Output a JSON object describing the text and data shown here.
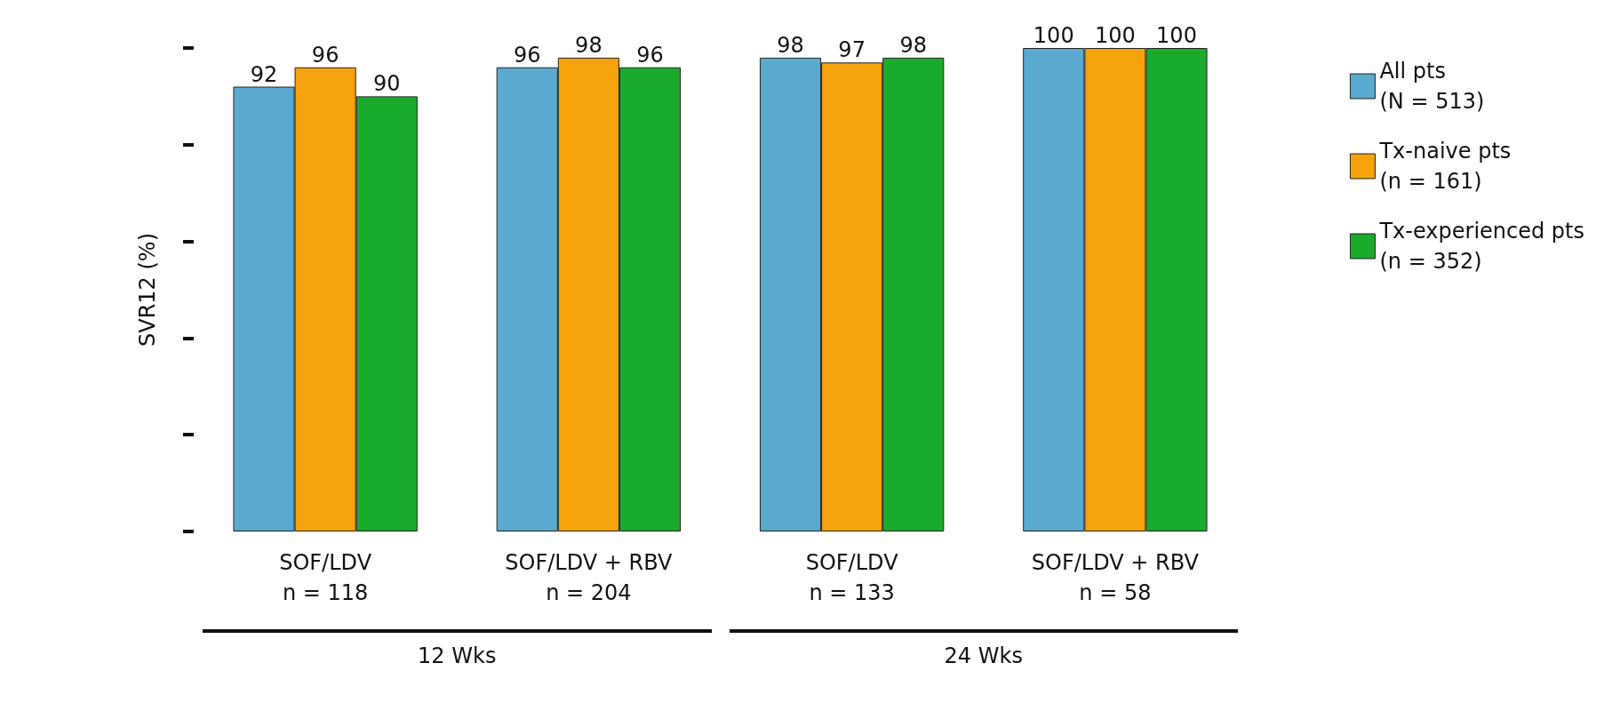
{
  "chart_data": {
    "type": "bar",
    "ylabel": "SVR12 (%)",
    "categories": [
      "SOF/LDV\nn = 118",
      "SOF/LDV + RBV\nn = 204",
      "SOF/LDV\nn = 133",
      "SOF/LDV + RBV\nn = 58"
    ],
    "series": [
      {
        "name": "All pts\n(N = 513)",
        "color": "#5aaacf",
        "values": [
          92,
          96,
          98,
          100
        ]
      },
      {
        "name": "Tx-naive pts\n(n = 161)",
        "color": "#f5a20c",
        "values": [
          96,
          98,
          97,
          100
        ]
      },
      {
        "name": "Tx-experienced pts\n(n = 352)",
        "color": "#1aab2c",
        "values": [
          90,
          96,
          98,
          100
        ]
      }
    ],
    "ylim": [
      0,
      100
    ],
    "yticks": [
      {
        "value": 0,
        "label": null
      },
      {
        "value": 20,
        "label": null
      },
      {
        "value": 40,
        "label": null
      },
      {
        "value": 60,
        "label": null
      },
      {
        "value": 80,
        "label": null
      },
      {
        "value": 100,
        "label": null
      }
    ],
    "tick_labels": "x",
    "data_labels": true,
    "grid": false,
    "legend": "right",
    "annotations": [
      "12 Wks",
      "24 Wks"
    ]
  }
}
